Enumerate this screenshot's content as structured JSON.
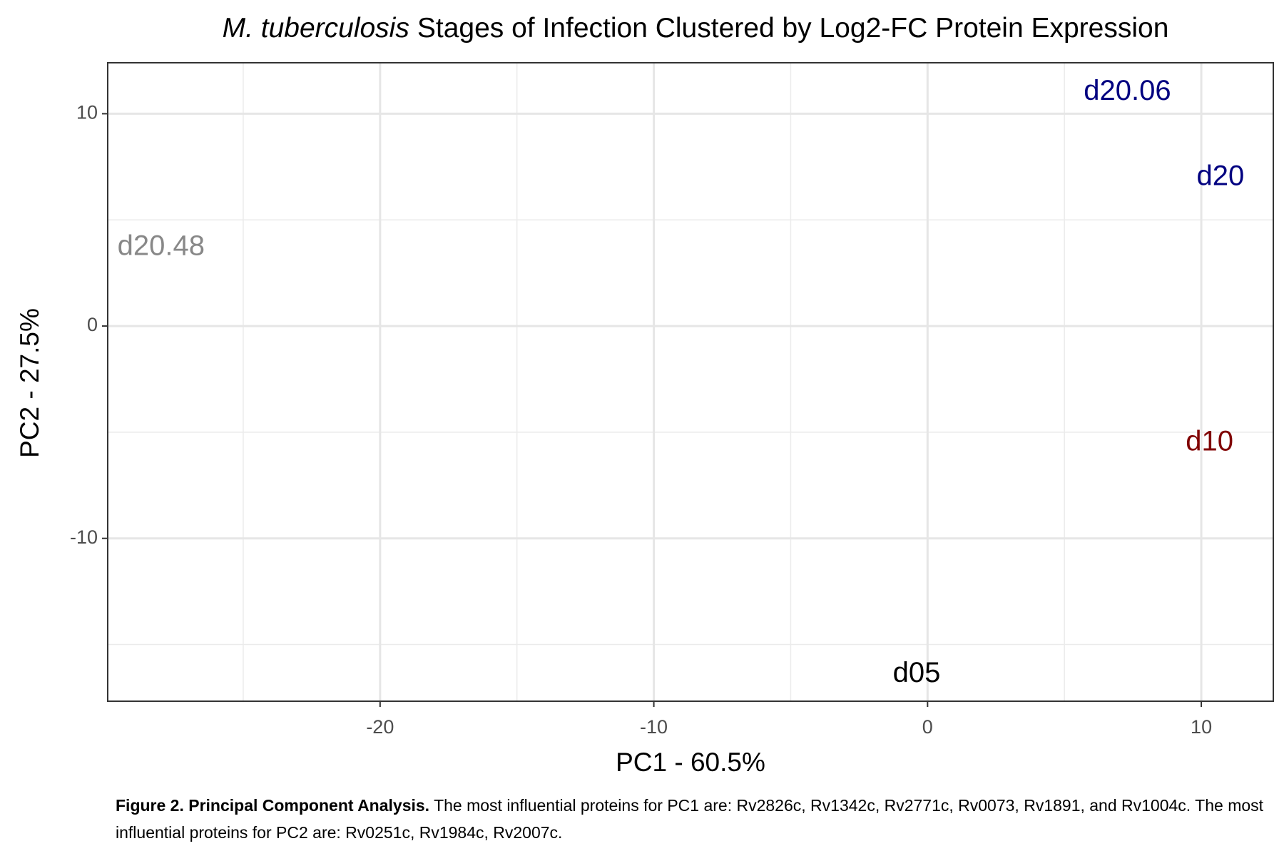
{
  "chart_data": {
    "type": "scatter",
    "title_species": "M. tuberculosis",
    "title": "Stages of Infection Clustered by Log2-FC Protein Expression",
    "x_label": "PC1 - 60.5%",
    "y_label": "PC2 - 27.5%",
    "labels": [
      "d20.06",
      "d20",
      "d20.48",
      "d10",
      "d05"
    ],
    "x": [
      7.3,
      10.7,
      -28.0,
      10.3,
      -0.4
    ],
    "values": [
      11.0,
      7.0,
      3.7,
      -5.5,
      -16.4
    ],
    "colors": [
      "#000080",
      "#000080",
      "#888888",
      "#800000",
      "#000000"
    ],
    "xlim": [
      -29.95,
      12.63
    ],
    "ylim": [
      -17.67,
      12.4
    ],
    "xticks": [
      -20,
      -10,
      0,
      10
    ],
    "yticks": [
      -10,
      0,
      10
    ],
    "minor_xticks": [
      -25,
      -15,
      -5,
      5
    ],
    "minor_yticks": [
      -15,
      -5,
      5
    ],
    "grid": true
  },
  "caption": {
    "label": "Figure 2. Principal Component Analysis.",
    "text": "The most influential proteins for PC1 are: Rv2826c, Rv1342c, Rv2771c, Rv0073, Rv1891, and Rv1004c. The most influential proteins for PC2 are: Rv0251c, Rv1984c, Rv2007c."
  }
}
